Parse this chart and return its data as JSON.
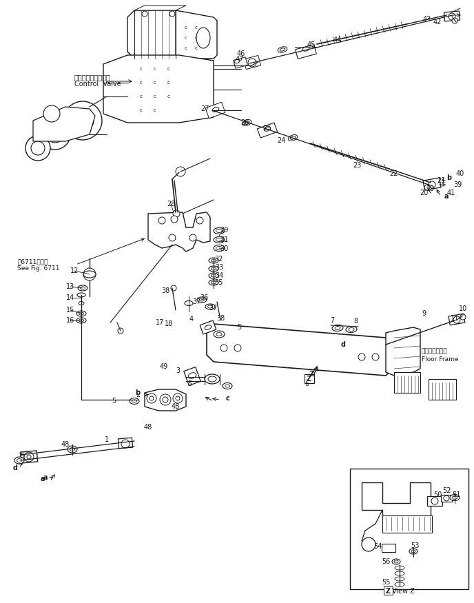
{
  "background_color": "#ffffff",
  "line_color": "#1a1a1a",
  "labels": {
    "control_valve_jp": "コントロールバルブ",
    "control_valve_en": "Control  Valve",
    "see_fig_jp": "図6711図参照",
    "see_fig_en": "See Fig. 6711",
    "floor_frame_jp": "フロアフレーム",
    "floor_frame_en": "Floor Frame",
    "view_z": "View Z"
  },
  "fig_size": [
    6.88,
    8.75
  ],
  "dpi": 100
}
